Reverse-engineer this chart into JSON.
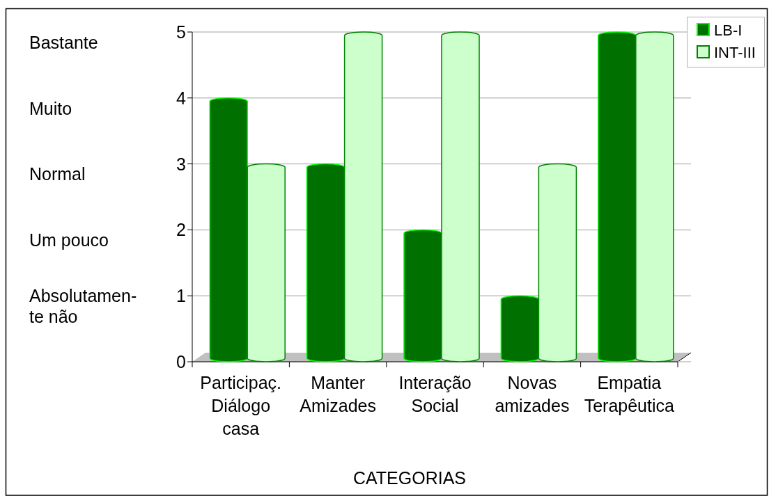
{
  "chart_data": {
    "type": "bar",
    "categories": [
      "Participaç. Diálogo casa",
      "Manter Amizades",
      "Interação Social",
      "Novas amizades",
      "Empatia Terapêutica"
    ],
    "series": [
      {
        "name": "LB-I",
        "color": "#007000",
        "values": [
          4,
          3,
          2,
          1,
          5
        ]
      },
      {
        "name": "INT-III",
        "color": "#ccffcc",
        "values": [
          3,
          5,
          5,
          3,
          5
        ]
      }
    ],
    "xlabel": "CATEGORIAS",
    "ylim": [
      0,
      5
    ],
    "yticks": [
      0,
      1,
      2,
      3,
      4,
      5
    ],
    "grid": "y",
    "legend": "top right",
    "annotations": [
      "Bastante",
      "Muito",
      "Normal",
      "Um pouco",
      "Absolutamen-te não"
    ]
  }
}
